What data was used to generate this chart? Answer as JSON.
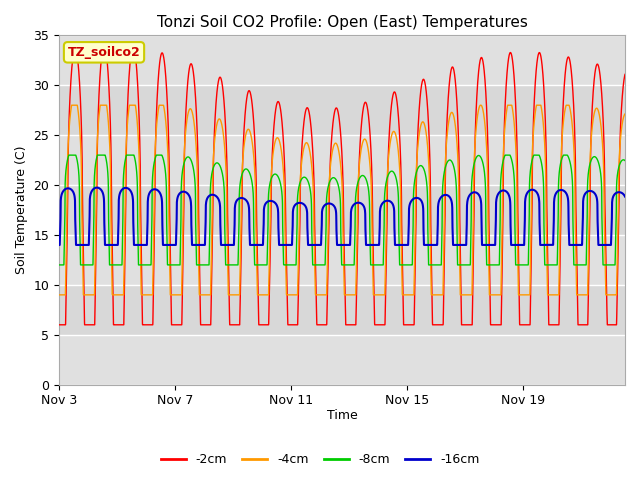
{
  "title": "Tonzi Soil CO2 Profile: Open (East) Temperatures",
  "xlabel": "Time",
  "ylabel": "Soil Temperature (C)",
  "ylim": [
    0,
    35
  ],
  "yticks": [
    0,
    5,
    10,
    15,
    20,
    25,
    30,
    35
  ],
  "xlim_days": [
    0,
    19.5
  ],
  "x_tick_labels": [
    "Nov 3",
    "Nov 7",
    "Nov 11",
    "Nov 15",
    "Nov 19"
  ],
  "x_tick_positions": [
    0,
    4,
    8,
    12,
    16
  ],
  "colors": {
    "-2cm": "#ff0000",
    "-4cm": "#ff9900",
    "-8cm": "#00cc00",
    "-16cm": "#0000cc"
  },
  "legend_label": "TZ_soilco2",
  "legend_box_color": "#ffffcc",
  "legend_box_edge": "#cccc00",
  "bg_bands": [
    {
      "ymin": 0,
      "ymax": 5,
      "color": "#e0e0e0"
    },
    {
      "ymin": 5,
      "ymax": 10,
      "color": "#d8d8d8"
    },
    {
      "ymin": 10,
      "ymax": 15,
      "color": "#e0e0e0"
    },
    {
      "ymin": 15,
      "ymax": 20,
      "color": "#d8d8d8"
    },
    {
      "ymin": 20,
      "ymax": 25,
      "color": "#e0e0e0"
    },
    {
      "ymin": 25,
      "ymax": 30,
      "color": "#d8d8d8"
    },
    {
      "ymin": 30,
      "ymax": 35,
      "color": "#e0e0e0"
    }
  ],
  "plot_bg_color": "#e0e0e0",
  "grid_color": "#ffffff",
  "num_days": 19.5,
  "period": 1.0
}
